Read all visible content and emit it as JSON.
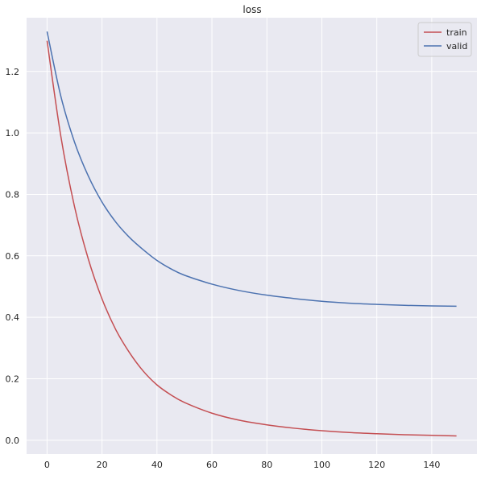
{
  "chart_data": {
    "type": "line",
    "title": "loss",
    "xlabel": "",
    "ylabel": "",
    "xlim": [
      -7.45,
      156.45
    ],
    "ylim": [
      -0.045,
      1.375
    ],
    "x_ticks": [
      0,
      20,
      40,
      60,
      80,
      100,
      120,
      140
    ],
    "y_ticks": [
      0.0,
      0.2,
      0.4,
      0.6,
      0.8,
      1.0,
      1.2
    ],
    "y_tick_labels": [
      "0.0",
      "0.2",
      "0.4",
      "0.6",
      "0.8",
      "1.0",
      "1.2"
    ],
    "grid": true,
    "legend_position": "top-right",
    "background": "#e9e9f1",
    "series": [
      {
        "name": "train",
        "color": "#c44e52",
        "x": [
          0,
          5,
          10,
          15,
          20,
          25,
          30,
          35,
          40,
          45,
          50,
          60,
          70,
          80,
          90,
          100,
          110,
          120,
          130,
          140,
          149
        ],
        "y": [
          1.3,
          0.99,
          0.76,
          0.59,
          0.46,
          0.36,
          0.285,
          0.225,
          0.18,
          0.148,
          0.123,
          0.088,
          0.065,
          0.05,
          0.039,
          0.031,
          0.025,
          0.021,
          0.018,
          0.016,
          0.014
        ]
      },
      {
        "name": "valid",
        "color": "#4c72b0",
        "x": [
          0,
          5,
          10,
          15,
          20,
          25,
          30,
          35,
          40,
          45,
          50,
          60,
          70,
          80,
          90,
          100,
          110,
          120,
          130,
          140,
          149
        ],
        "y": [
          1.33,
          1.12,
          0.97,
          0.86,
          0.775,
          0.71,
          0.66,
          0.62,
          0.585,
          0.558,
          0.537,
          0.508,
          0.487,
          0.472,
          0.461,
          0.452,
          0.446,
          0.442,
          0.439,
          0.437,
          0.436
        ]
      }
    ]
  }
}
